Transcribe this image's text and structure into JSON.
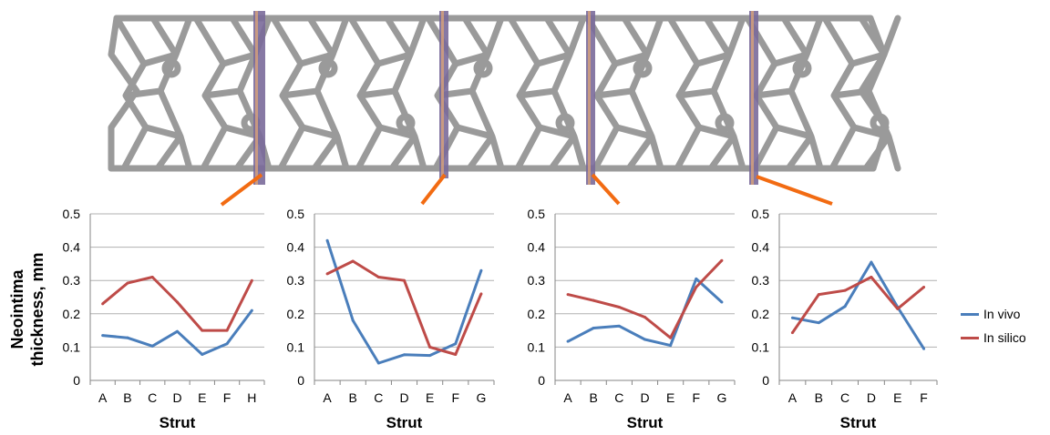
{
  "figure": {
    "ylabel_line1": "Neointima",
    "ylabel_line2": "thickness, mm",
    "legend": [
      {
        "name": "In vivo",
        "color": "#4a7ebb"
      },
      {
        "name": "In silico",
        "color": "#be4b48"
      }
    ],
    "stent_image": {
      "strut_color": "#9a9a9a",
      "section_color": "#7a6a9a",
      "connector_color": "#f26b12"
    }
  },
  "chart_data": [
    {
      "type": "line",
      "categories": [
        "A",
        "B",
        "C",
        "D",
        "E",
        "F",
        "H"
      ],
      "xlabel": "Strut",
      "ylim": [
        0,
        0.5
      ],
      "yticks": [
        "0",
        "0.1",
        "0.2",
        "0.3",
        "0.4",
        "0.5"
      ],
      "grid": true,
      "series": [
        {
          "name": "In vivo",
          "color": "#4a7ebb",
          "values": [
            0.135,
            0.128,
            0.103,
            0.147,
            0.078,
            0.11,
            0.21
          ]
        },
        {
          "name": "In silico",
          "color": "#be4b48",
          "values": [
            0.23,
            0.292,
            0.31,
            0.235,
            0.15,
            0.15,
            0.3
          ]
        }
      ]
    },
    {
      "type": "line",
      "categories": [
        "A",
        "B",
        "C",
        "D",
        "E",
        "F",
        "G"
      ],
      "xlabel": "Strut",
      "ylim": [
        0,
        0.5
      ],
      "yticks": [
        "0",
        "0.1",
        "0.2",
        "0.3",
        "0.4",
        "0.5"
      ],
      "grid": true,
      "series": [
        {
          "name": "In vivo",
          "color": "#4a7ebb",
          "values": [
            0.42,
            0.18,
            0.052,
            0.077,
            0.075,
            0.11,
            0.33
          ]
        },
        {
          "name": "In silico",
          "color": "#be4b48",
          "values": [
            0.32,
            0.358,
            0.31,
            0.3,
            0.1,
            0.078,
            0.26
          ]
        }
      ]
    },
    {
      "type": "line",
      "categories": [
        "A",
        "B",
        "C",
        "D",
        "E",
        "F",
        "G"
      ],
      "xlabel": "Strut",
      "ylim": [
        0,
        0.5
      ],
      "yticks": [
        "0",
        "0.1",
        "0.2",
        "0.3",
        "0.4",
        "0.5"
      ],
      "grid": true,
      "series": [
        {
          "name": "In vivo",
          "color": "#4a7ebb",
          "values": [
            0.117,
            0.157,
            0.163,
            0.123,
            0.105,
            0.305,
            0.235
          ]
        },
        {
          "name": "In silico",
          "color": "#be4b48",
          "values": [
            0.258,
            0.24,
            0.22,
            0.19,
            0.128,
            0.28,
            0.36
          ]
        }
      ]
    },
    {
      "type": "line",
      "categories": [
        "A",
        "B",
        "C",
        "D",
        "E",
        "F"
      ],
      "xlabel": "Strut",
      "ylim": [
        0,
        0.5
      ],
      "yticks": [
        "0",
        "0.1",
        "0.2",
        "0.3",
        "0.4",
        "0.5"
      ],
      "grid": true,
      "series": [
        {
          "name": "In vivo",
          "color": "#4a7ebb",
          "values": [
            0.188,
            0.173,
            0.222,
            0.355,
            0.22,
            0.095
          ]
        },
        {
          "name": "In silico",
          "color": "#be4b48",
          "values": [
            0.143,
            0.258,
            0.27,
            0.31,
            0.215,
            0.28
          ]
        }
      ]
    }
  ]
}
